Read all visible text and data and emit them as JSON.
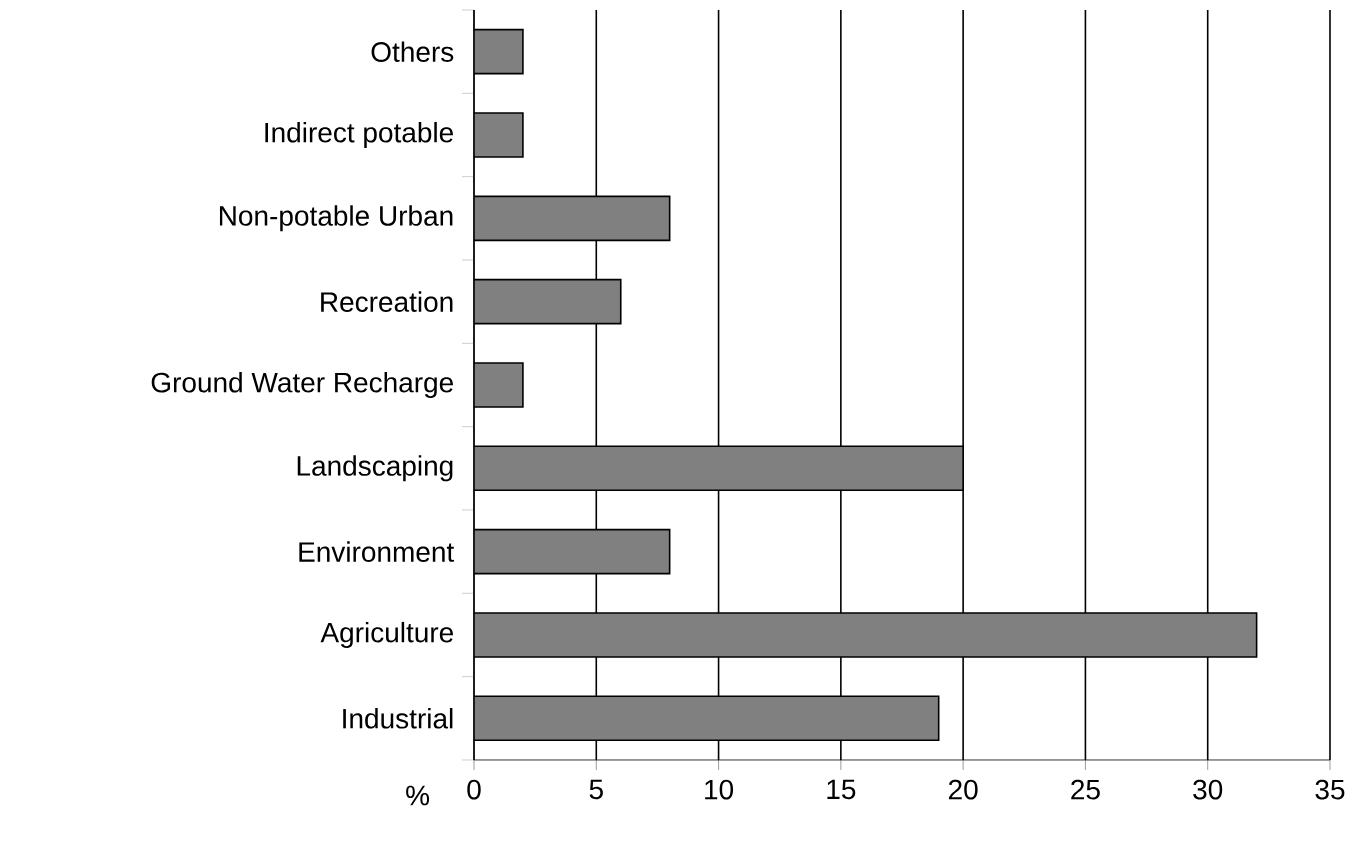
{
  "chart_data": {
    "type": "bar",
    "orientation": "horizontal",
    "xlabel": "%",
    "categories": [
      "Others",
      "Indirect potable",
      "Non-potable Urban",
      "Recreation",
      "Ground Water Recharge",
      "Landscaping",
      "Environment",
      "Agriculture",
      "Industrial"
    ],
    "values": [
      2,
      2,
      8,
      6,
      2,
      20,
      8,
      32,
      19
    ],
    "color": "#808080",
    "xlim": [
      0,
      35
    ],
    "xticks": [
      0,
      5,
      10,
      15,
      20,
      25,
      30,
      35
    ],
    "grid": "x"
  }
}
